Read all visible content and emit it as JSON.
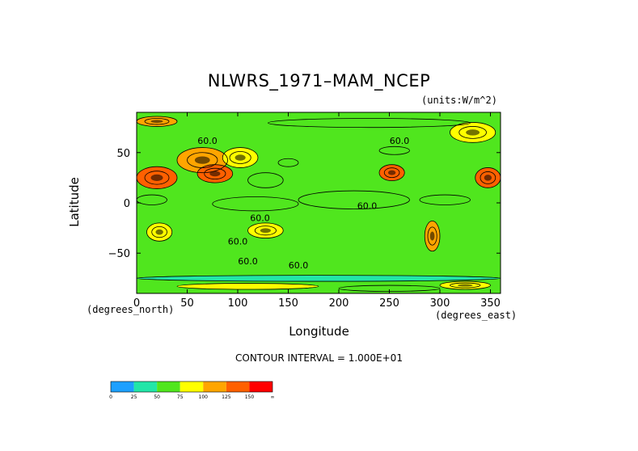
{
  "chart_data": {
    "type": "heatmap",
    "title": "NLWRS_1971–MAM_NCEP",
    "units": "(units:W/m^2)",
    "xlabel": "Longitude",
    "ylabel": "Latitude",
    "x_unit_label": "(degrees_east)",
    "y_unit_label": "(degrees_north)",
    "xlim": [
      0,
      360
    ],
    "ylim": [
      -90,
      90
    ],
    "x_ticks": [
      0,
      50,
      100,
      150,
      200,
      250,
      300,
      350
    ],
    "y_ticks": [
      50,
      0,
      -50
    ],
    "x_tick_labels": [
      "0",
      "50",
      "100",
      "150",
      "200",
      "250",
      "300",
      "350"
    ],
    "y_tick_labels": [
      "50",
      "0",
      "−50"
    ],
    "contour_interval": "CONTOUR INTERVAL = 1.000E+01",
    "contour_labels": [
      {
        "text": "60.0",
        "lon": 70,
        "lat": 62
      },
      {
        "text": "60.0",
        "lon": 122,
        "lat": -15
      },
      {
        "text": "60.0",
        "lon": 100,
        "lat": -38
      },
      {
        "text": "60.0",
        "lon": 110,
        "lat": -58
      },
      {
        "text": "60.0",
        "lon": 160,
        "lat": -62
      },
      {
        "text": "60.0",
        "lon": 260,
        "lat": 62
      },
      {
        "text": "60.0",
        "lon": 228,
        "lat": -3
      }
    ],
    "colorbar": {
      "levels": [
        "0",
        "25",
        "50",
        "75",
        "100",
        "125",
        "150",
        "∞"
      ],
      "colors": [
        "#1ea0ff",
        "#22e6a8",
        "#50e61e",
        "#ffff00",
        "#ffa500",
        "#ff6000",
        "#ff0000"
      ]
    },
    "background_color": "#50e61e",
    "grid": false,
    "regions": [
      {
        "lon": [
          160,
          270
        ],
        "lat": [
          -6,
          12
        ],
        "level": 2
      },
      {
        "lon": [
          75,
          160
        ],
        "lat": [
          -8,
          6
        ],
        "level": 2
      },
      {
        "lon": [
          110,
          145
        ],
        "lat": [
          15,
          30
        ],
        "level": 2
      },
      {
        "lon": [
          280,
          330
        ],
        "lat": [
          -2,
          8
        ],
        "level": 2
      },
      {
        "lon": [
          130,
          330
        ],
        "lat": [
          75,
          84
        ],
        "level": 2
      },
      {
        "lon": [
          0,
          30
        ],
        "lat": [
          -2,
          8
        ],
        "level": 2
      },
      {
        "lon": [
          140,
          160
        ],
        "lat": [
          36,
          44
        ],
        "level": 2
      },
      {
        "lon": [
          240,
          270
        ],
        "lat": [
          48,
          56
        ],
        "level": 2
      },
      {
        "lon": [
          0,
          40
        ],
        "lat": [
          14,
          36
        ],
        "level": 5
      },
      {
        "lon": [
          40,
          90
        ],
        "lat": [
          30,
          55
        ],
        "level": 4
      },
      {
        "lon": [
          60,
          95
        ],
        "lat": [
          20,
          38
        ],
        "level": 5
      },
      {
        "lon": [
          85,
          120
        ],
        "lat": [
          35,
          55
        ],
        "level": 3
      },
      {
        "lon": [
          240,
          265
        ],
        "lat": [
          22,
          38
        ],
        "level": 5
      },
      {
        "lon": [
          335,
          360
        ],
        "lat": [
          15,
          35
        ],
        "level": 5
      },
      {
        "lon": [
          110,
          145
        ],
        "lat": [
          -35,
          -20
        ],
        "level": 3
      },
      {
        "lon": [
          10,
          35
        ],
        "lat": [
          -38,
          -20
        ],
        "level": 3
      },
      {
        "lon": [
          285,
          300
        ],
        "lat": [
          -48,
          -18
        ],
        "level": 4
      },
      {
        "lon": [
          310,
          355
        ],
        "lat": [
          60,
          80
        ],
        "level": 3
      },
      {
        "lon": [
          0,
          40
        ],
        "lat": [
          76,
          86
        ],
        "level": 4
      },
      {
        "lon": [
          0,
          360
        ],
        "lat": [
          -78,
          -72
        ],
        "level": 1
      },
      {
        "lon": [
          40,
          180
        ],
        "lat": [
          -86,
          -80
        ],
        "level": 3
      },
      {
        "lon": [
          300,
          350
        ],
        "lat": [
          -86,
          -78
        ],
        "level": 3
      },
      {
        "lon": [
          200,
          300
        ],
        "lat": [
          -88,
          -82
        ],
        "level": 2
      }
    ]
  }
}
